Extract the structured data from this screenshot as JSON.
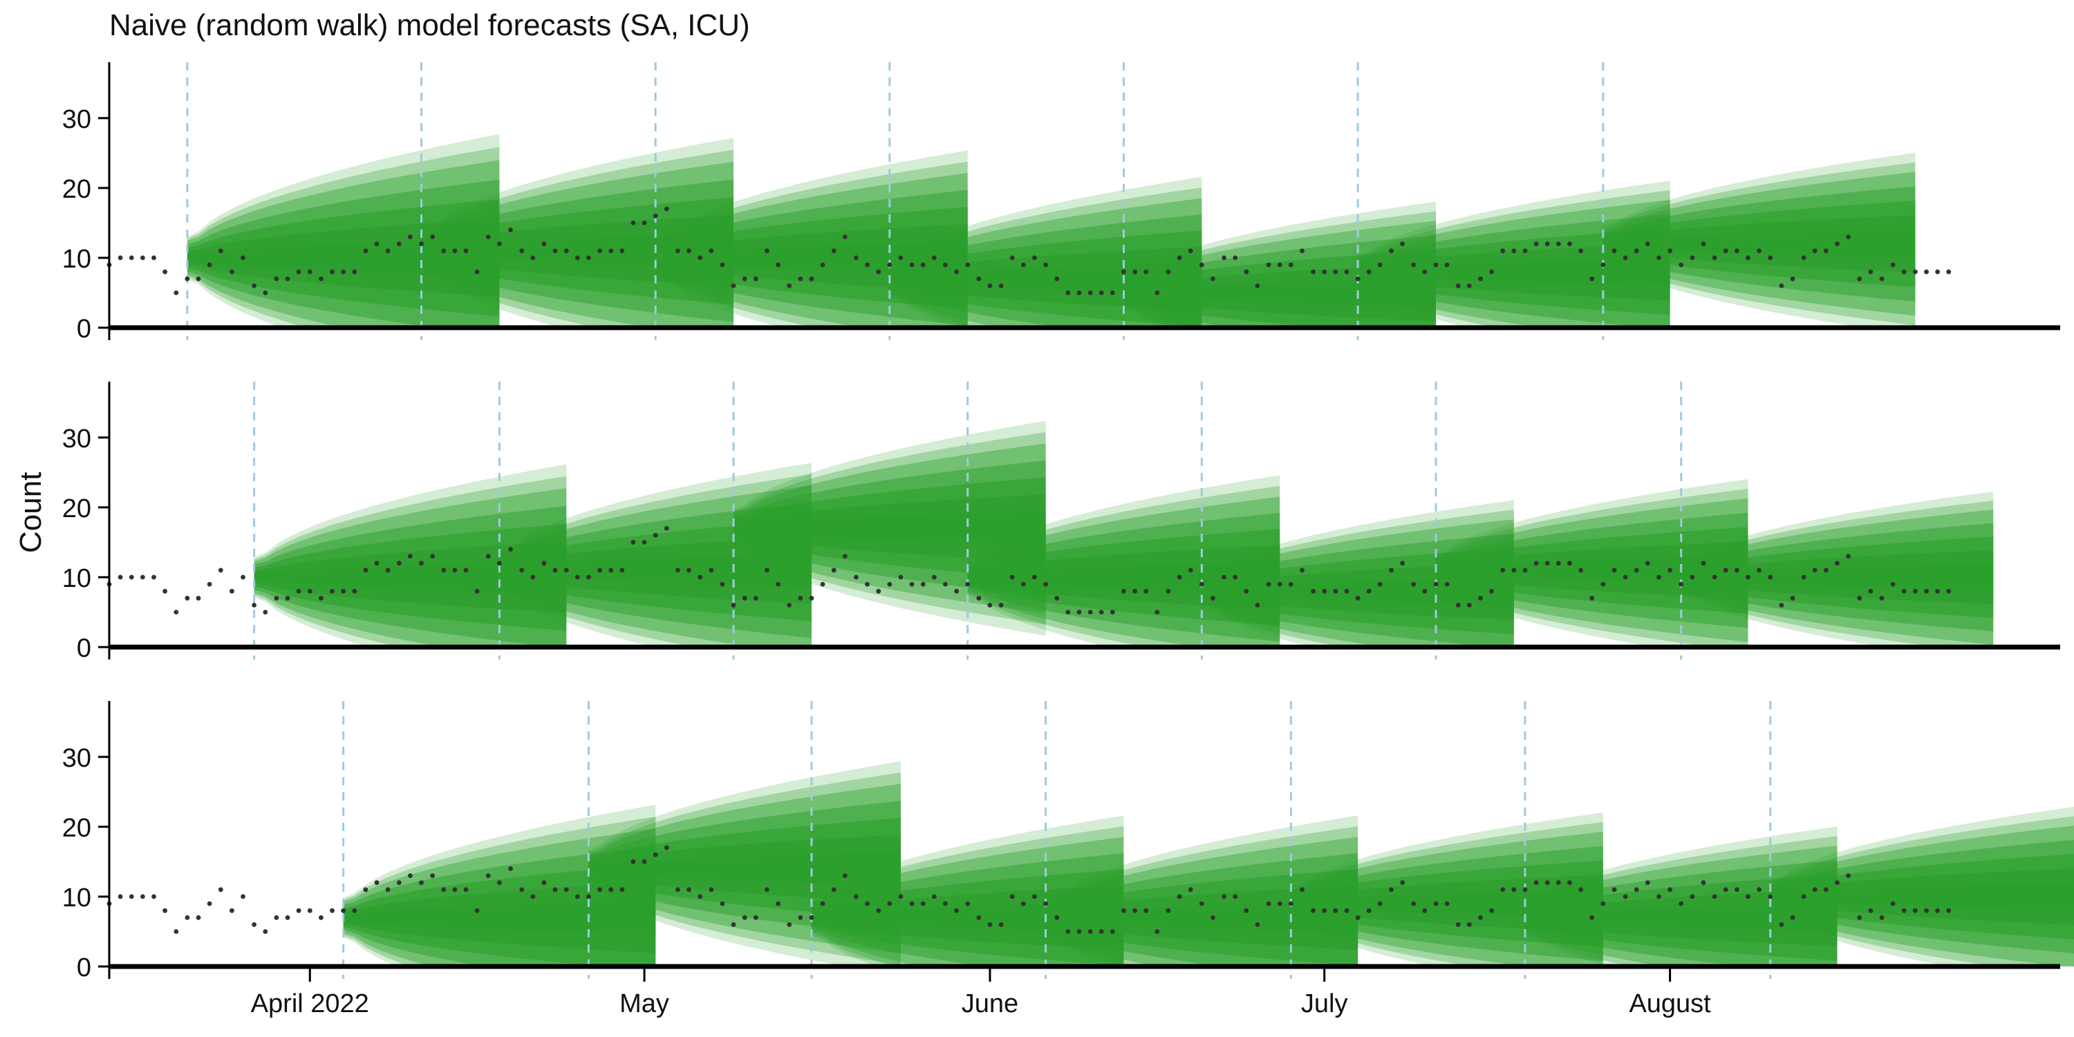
{
  "title": "Naive (random walk) model forecasts (SA, ICU)",
  "ylabel": "Count",
  "colors": {
    "band": "#2ca02c",
    "band_opacities": [
      0.22,
      0.32,
      0.42,
      0.52,
      0.62,
      0.72,
      0.82
    ],
    "observed": "#333333",
    "forecast_date_line": "#9ecae1",
    "axis": "#000000"
  },
  "chart_data": {
    "type": "area",
    "x_range": [
      "2022-03-14",
      "2022-09-05"
    ],
    "ylim": [
      0,
      38
    ],
    "yticks": [
      0,
      10,
      20,
      30
    ],
    "xticks": [
      {
        "date": "2022-04-01",
        "label": "April 2022"
      },
      {
        "date": "2022-05-01",
        "label": "May"
      },
      {
        "date": "2022-06-01",
        "label": "June"
      },
      {
        "date": "2022-07-01",
        "label": "July"
      },
      {
        "date": "2022-08-01",
        "label": "August"
      }
    ],
    "grid": false,
    "legend": "none",
    "observed": {
      "start_date": "2022-03-14",
      "values": [
        9,
        10,
        10,
        10,
        10,
        8,
        5,
        7,
        7,
        9,
        11,
        8,
        10,
        6,
        5,
        7,
        7,
        8,
        8,
        7,
        8,
        8,
        8,
        11,
        12,
        11,
        12,
        13,
        12,
        13,
        11,
        11,
        11,
        8,
        13,
        12,
        14,
        11,
        10,
        12,
        11,
        11,
        10,
        10,
        11,
        11,
        11,
        15,
        15,
        16,
        17,
        11,
        11,
        10,
        11,
        9,
        6,
        7,
        7,
        11,
        9,
        6,
        7,
        7,
        9,
        11,
        13,
        10,
        9,
        8,
        9,
        10,
        9,
        9,
        10,
        9,
        8,
        9,
        7,
        6,
        6,
        10,
        9,
        10,
        9,
        7,
        5,
        5,
        5,
        5,
        5,
        8,
        8,
        8,
        5,
        8,
        10,
        11,
        9,
        7,
        10,
        10,
        8,
        6,
        9,
        9,
        9,
        11,
        8,
        8,
        8,
        8,
        7,
        8,
        9,
        11,
        12,
        9,
        8,
        9,
        9,
        6,
        6,
        7,
        8,
        11,
        11,
        11,
        12,
        12,
        12,
        12,
        11,
        7,
        9,
        11,
        10,
        11,
        12,
        10,
        11,
        9,
        10,
        12,
        10,
        11,
        11,
        10,
        11,
        10,
        6,
        7,
        10,
        11,
        11,
        12,
        13,
        7,
        8,
        7,
        9,
        8,
        8,
        8,
        8,
        8
      ]
    },
    "panels": [
      {
        "forecasts": [
          {
            "origin": "2022-03-21",
            "level": 10,
            "width": 2.2
          },
          {
            "origin": "2022-04-11",
            "level": 11,
            "width": 2.0
          },
          {
            "origin": "2022-05-02",
            "level": 10,
            "width": 1.9
          },
          {
            "origin": "2022-05-23",
            "level": 7,
            "width": 1.8
          },
          {
            "origin": "2022-06-13",
            "level": 5,
            "width": 1.6
          },
          {
            "origin": "2022-07-04",
            "level": 8,
            "width": 1.6
          },
          {
            "origin": "2022-07-26",
            "level": 12,
            "width": 1.6
          }
        ]
      },
      {
        "forecasts": [
          {
            "origin": "2022-03-27",
            "level": 10,
            "width": 2.0
          },
          {
            "origin": "2022-04-18",
            "level": 11,
            "width": 1.9
          },
          {
            "origin": "2022-05-09",
            "level": 17,
            "width": 1.9
          },
          {
            "origin": "2022-05-30",
            "level": 10,
            "width": 1.8
          },
          {
            "origin": "2022-06-20",
            "level": 8,
            "width": 1.6
          },
          {
            "origin": "2022-07-11",
            "level": 11,
            "width": 1.6
          },
          {
            "origin": "2022-08-02",
            "level": 10,
            "width": 1.5
          }
        ]
      },
      {
        "forecasts": [
          {
            "origin": "2022-04-04",
            "level": 7,
            "width": 2.0
          },
          {
            "origin": "2022-04-26",
            "level": 14,
            "width": 1.9
          },
          {
            "origin": "2022-05-16",
            "level": 7,
            "width": 1.8
          },
          {
            "origin": "2022-06-06",
            "level": 7,
            "width": 1.8
          },
          {
            "origin": "2022-06-28",
            "level": 9,
            "width": 1.6
          },
          {
            "origin": "2022-07-19",
            "level": 7,
            "width": 1.6
          },
          {
            "origin": "2022-08-10",
            "level": 10,
            "width": 1.6
          }
        ]
      }
    ]
  }
}
